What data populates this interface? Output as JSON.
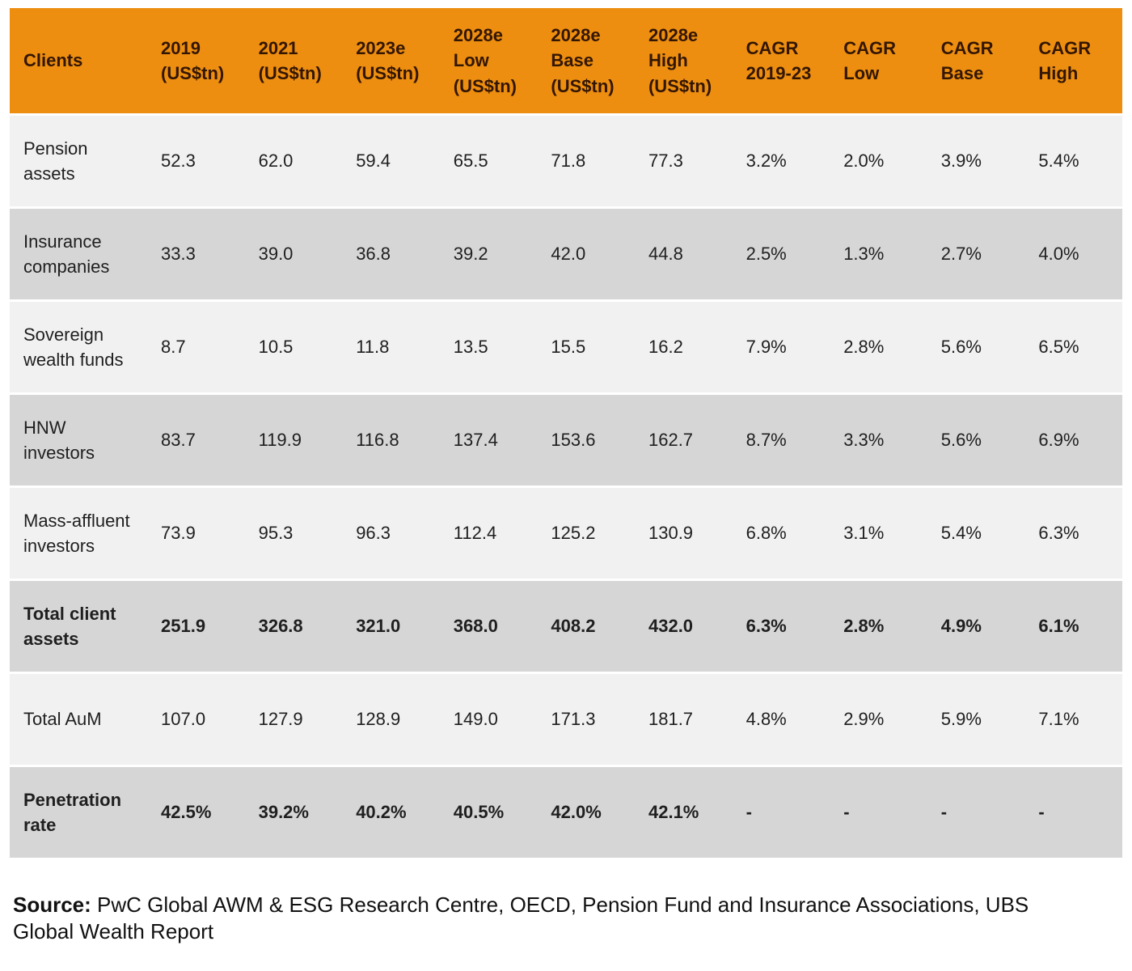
{
  "colors": {
    "header_bg": "#ED8E11",
    "header_text": "#331600",
    "row_light": "#F1F1F1",
    "row_dark": "#D6D6D6",
    "body_text": "#1F1F1F"
  },
  "chart_data": {
    "type": "table",
    "columns": [
      "Clients",
      "2019 (US$tn)",
      "2021 (US$tn)",
      "2023e (US$tn)",
      "2028e Low (US$tn)",
      "2028e Base (US$tn)",
      "2028e High (US$tn)",
      "CAGR 2019-23",
      "CAGR Low",
      "CAGR Base",
      "CAGR High"
    ],
    "rows": [
      {
        "label": "Pension assets",
        "values": [
          "52.3",
          "62.0",
          "59.4",
          "65.5",
          "71.8",
          "77.3",
          "3.2%",
          "2.0%",
          "3.9%",
          "5.4%"
        ]
      },
      {
        "label": "Insurance companies",
        "values": [
          "33.3",
          "39.0",
          "36.8",
          "39.2",
          "42.0",
          "44.8",
          "2.5%",
          "1.3%",
          "2.7%",
          "4.0%"
        ]
      },
      {
        "label": "Sovereign wealth funds",
        "values": [
          "8.7",
          "10.5",
          "11.8",
          "13.5",
          "15.5",
          "16.2",
          "7.9%",
          "2.8%",
          "5.6%",
          "6.5%"
        ]
      },
      {
        "label": "HNW investors",
        "values": [
          "83.7",
          "119.9",
          "116.8",
          "137.4",
          "153.6",
          "162.7",
          "8.7%",
          "3.3%",
          "5.6%",
          "6.9%"
        ]
      },
      {
        "label": "Mass-affluent investors",
        "values": [
          "73.9",
          "95.3",
          "96.3",
          "112.4",
          "125.2",
          "130.9",
          "6.8%",
          "3.1%",
          "5.4%",
          "6.3%"
        ]
      },
      {
        "label": "Total client assets",
        "bold": true,
        "values": [
          "251.9",
          "326.8",
          "321.0",
          "368.0",
          "408.2",
          "432.0",
          "6.3%",
          "2.8%",
          "4.9%",
          "6.1%"
        ]
      },
      {
        "label": "Total AuM",
        "values": [
          "107.0",
          "127.9",
          "128.9",
          "149.0",
          "171.3",
          "181.7",
          "4.8%",
          "2.9%",
          "5.9%",
          "7.1%"
        ]
      },
      {
        "label": "Penetration rate",
        "bold": true,
        "values": [
          "42.5%",
          "39.2%",
          "40.2%",
          "40.5%",
          "42.0%",
          "42.1%",
          "-",
          "-",
          "-",
          "-"
        ]
      }
    ]
  },
  "source": {
    "label": "Source:",
    "text": " PwC Global AWM & ESG Research Centre, OECD, Pension Fund and Insurance Associations, UBS Global Wealth Report"
  }
}
